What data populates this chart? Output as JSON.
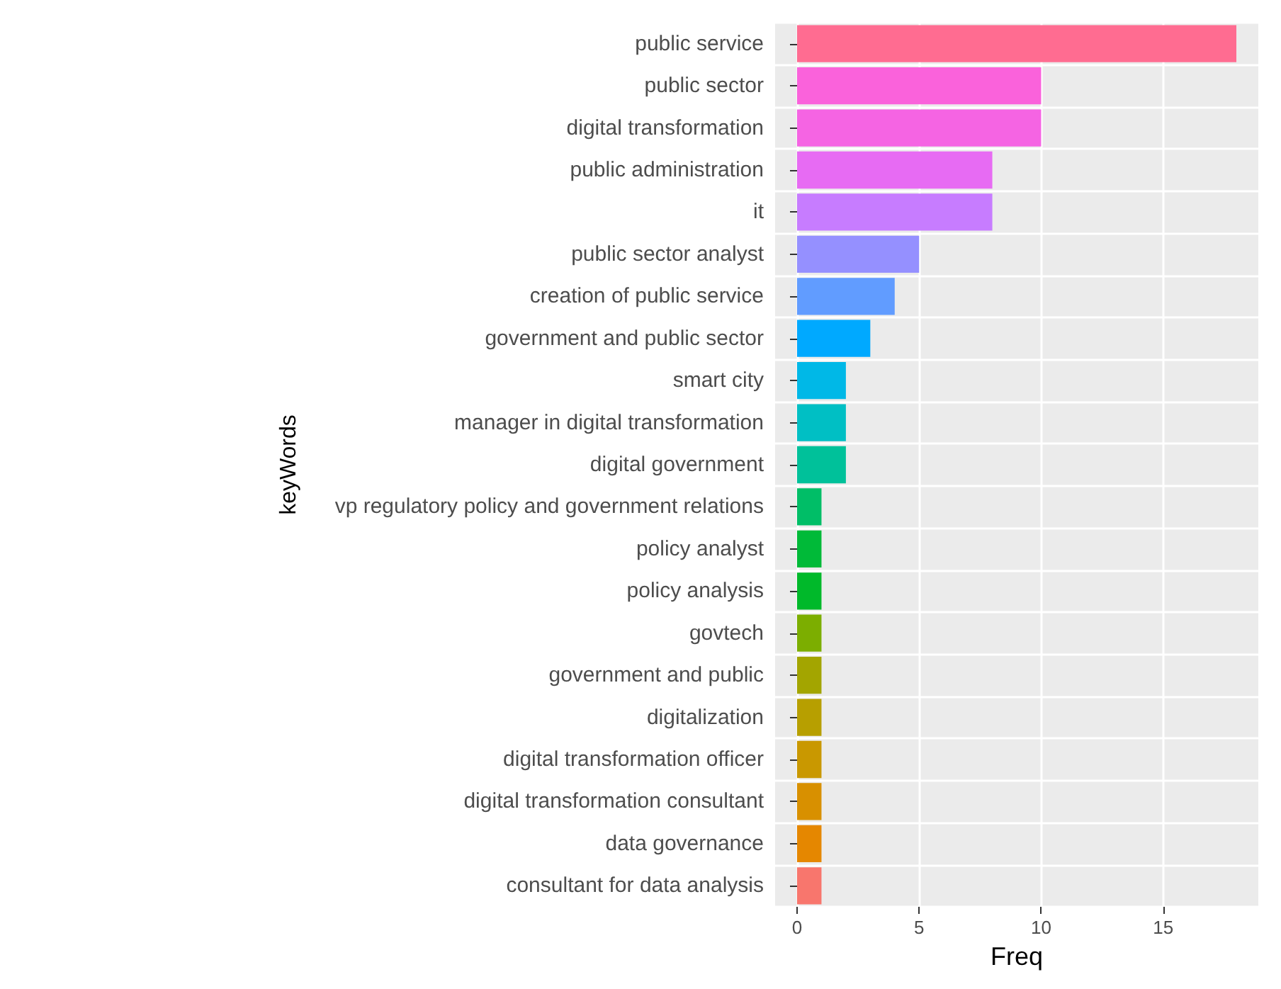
{
  "chart_data": {
    "type": "bar",
    "orientation": "horizontal",
    "xlabel": "Freq",
    "ylabel": "keyWords",
    "categories": [
      "public service",
      "public sector",
      "digital transformation",
      "public administration",
      "it",
      "public sector analyst",
      "creation of public service",
      "government and public sector",
      "smart city",
      "manager in digital transformation",
      "digital government",
      "vp regulatory policy and government relations",
      "policy analyst",
      "policy analysis",
      "govtech",
      "government and public",
      "digitalization",
      "digital transformation officer",
      "digital transformation consultant",
      "data governance",
      "consultant for data analysis"
    ],
    "values": [
      18,
      10,
      10,
      8,
      8,
      5,
      4,
      3,
      2,
      2,
      2,
      1,
      1,
      1,
      1,
      1,
      1,
      1,
      1,
      1,
      1
    ],
    "colors": [
      "#FF6C91",
      "#FA62DB",
      "#F564E3",
      "#E76BF3",
      "#C77CFF",
      "#9590FF",
      "#619CFF",
      "#00A9FF",
      "#00B8E7",
      "#00BFC4",
      "#00C19A",
      "#00BE67",
      "#00BA38",
      "#00B92A",
      "#7CAE00",
      "#A3A500",
      "#B79F00",
      "#C99800",
      "#D89000",
      "#E58700",
      "#F8766D"
    ],
    "xlim": [
      -0.9,
      18.9
    ],
    "xticks": [
      0,
      5,
      10,
      15
    ],
    "grid": true
  }
}
